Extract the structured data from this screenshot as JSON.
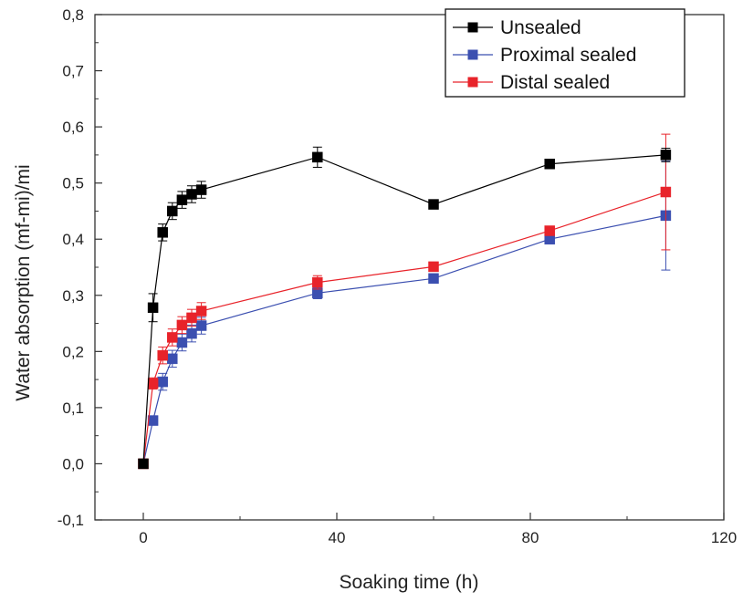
{
  "chart_data": {
    "type": "line",
    "xlabel": "Soaking time (h)",
    "ylabel": "Water absorption (mf-mi)/mi",
    "xlim": [
      -10,
      120
    ],
    "ylim": [
      -0.1,
      0.8
    ],
    "xticks": [
      0,
      40,
      80,
      120
    ],
    "yticks": [
      -0.1,
      0.0,
      0.1,
      0.2,
      0.3,
      0.4,
      0.5,
      0.6,
      0.7,
      0.8
    ],
    "ytick_labels": [
      "-0,1",
      "0,0",
      "0,1",
      "0,2",
      "0,3",
      "0,4",
      "0,5",
      "0,6",
      "0,7",
      "0,8"
    ],
    "xtick_labels": [
      "0",
      "40",
      "80",
      "120"
    ],
    "grid": false,
    "legend_position": "top-right",
    "series": [
      {
        "name": "Unsealed",
        "color": "#000000",
        "x": [
          0,
          2,
          4,
          6,
          8,
          10,
          12,
          36,
          60,
          84,
          108
        ],
        "y": [
          0.0,
          0.278,
          0.412,
          0.45,
          0.47,
          0.48,
          0.488,
          0.546,
          0.462,
          0.534,
          0.55
        ],
        "err": [
          0,
          0.025,
          0.015,
          0.015,
          0.015,
          0.015,
          0.015,
          0.018,
          0.005,
          0.006,
          0.012
        ]
      },
      {
        "name": "Proximal sealed",
        "color": "#3b4fb0",
        "x": [
          2,
          4,
          6,
          8,
          10,
          12,
          36,
          60,
          84,
          108
        ],
        "y": [
          0.077,
          0.146,
          0.187,
          0.216,
          0.232,
          0.246,
          0.304,
          0.33,
          0.4,
          0.442
        ],
        "err": [
          0.005,
          0.015,
          0.015,
          0.015,
          0.015,
          0.015,
          0.01,
          0.005,
          0.006,
          0.097
        ]
      },
      {
        "name": "Distal sealed",
        "color": "#e8232a",
        "x": [
          0,
          2,
          4,
          6,
          8,
          10,
          12,
          36,
          60,
          84,
          108
        ],
        "y": [
          0.0,
          0.143,
          0.193,
          0.225,
          0.247,
          0.26,
          0.272,
          0.323,
          0.351,
          0.415,
          0.484
        ],
        "err": [
          0,
          0.01,
          0.015,
          0.015,
          0.015,
          0.015,
          0.015,
          0.012,
          0.006,
          0.008,
          0.103
        ]
      }
    ]
  }
}
